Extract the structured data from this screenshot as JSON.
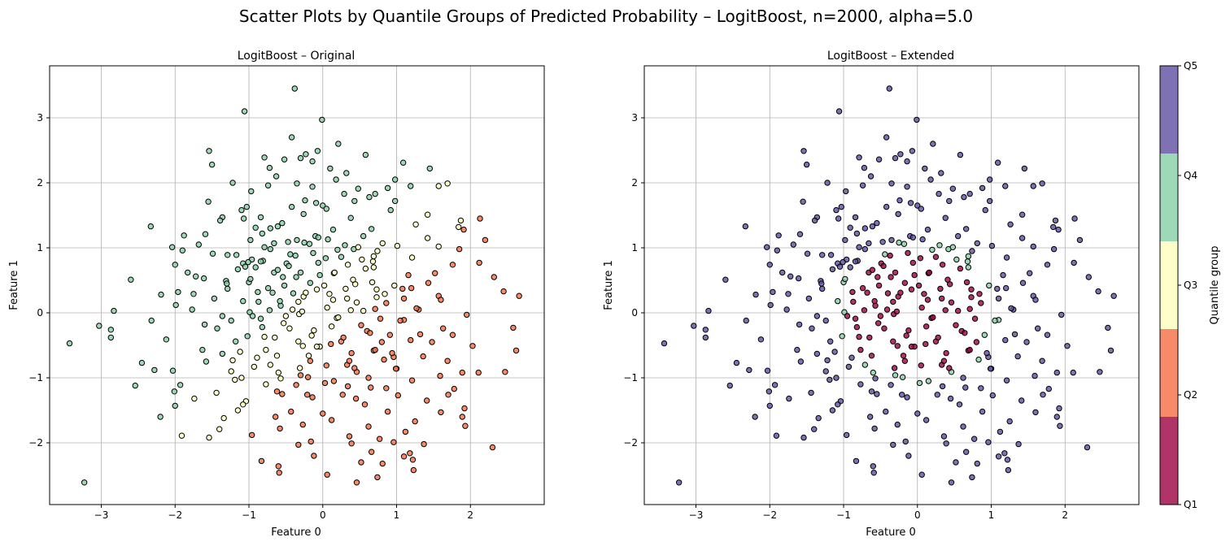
{
  "figure": {
    "suptitle": "Scatter Plots by Quantile Groups of Predicted Probability – LogitBoost, n=2000, alpha=5.0"
  },
  "colorbar": {
    "label": "Quantile group",
    "ticks": [
      "Q1",
      "Q2",
      "Q3",
      "Q4",
      "Q5"
    ],
    "colors": [
      "#9e0142",
      "#f46d43",
      "#fefebd",
      "#86cfa5",
      "#5e4fa2"
    ],
    "alpha": 0.8
  },
  "chart_data": [
    {
      "type": "scatter",
      "title": "LogitBoost – Original",
      "xlabel": "Feature 0",
      "ylabel": "Feature 1",
      "xlim": [
        -3.7,
        3.0
      ],
      "ylim": [
        -2.95,
        3.8
      ],
      "xticks": [
        -3,
        -2,
        -1,
        0,
        1,
        2
      ],
      "yticks": [
        -2,
        -1,
        0,
        1,
        2,
        3
      ],
      "grid": true,
      "coloring": "diagonal",
      "marker_edge": "#000000"
    },
    {
      "type": "scatter",
      "title": "LogitBoost – Extended",
      "xlabel": "Feature 0",
      "ylabel": "Feature 1",
      "xlim": [
        -3.7,
        3.0
      ],
      "ylim": [
        -2.95,
        3.8
      ],
      "xticks": [
        -3,
        -2,
        -1,
        0,
        1,
        2
      ],
      "yticks": [
        -2,
        -1,
        0,
        1,
        2,
        3
      ],
      "grid": true,
      "coloring": "radial",
      "marker_edge": "#000000"
    }
  ],
  "points": [
    [
      -0.38,
      3.45
    ],
    [
      -1.06,
      3.1
    ],
    [
      -0.01,
      2.97
    ],
    [
      -1.54,
      2.49
    ],
    [
      -0.07,
      2.49
    ],
    [
      -0.23,
      2.44
    ],
    [
      -0.79,
      2.39
    ],
    [
      0.58,
      2.43
    ],
    [
      -0.3,
      2.38
    ],
    [
      -0.14,
      2.33
    ],
    [
      1.09,
      2.31
    ],
    [
      -0.52,
      2.36
    ],
    [
      -1.5,
      2.28
    ],
    [
      0.32,
      2.15
    ],
    [
      0.1,
      2.22
    ],
    [
      -0.72,
      2.23
    ],
    [
      1.45,
      2.22
    ],
    [
      -0.63,
      2.1
    ],
    [
      1.69,
      1.99
    ],
    [
      1.57,
      1.95
    ],
    [
      1.19,
      1.95
    ],
    [
      -0.14,
      1.94
    ],
    [
      -0.35,
      1.99
    ],
    [
      0.48,
      1.91
    ],
    [
      -0.74,
      1.96
    ],
    [
      0.88,
      1.92
    ],
    [
      0.29,
      1.83
    ],
    [
      0.71,
      1.83
    ],
    [
      0.63,
      1.78
    ],
    [
      0.43,
      1.72
    ],
    [
      0.98,
      1.72
    ],
    [
      -1.55,
      1.71
    ],
    [
      -0.24,
      1.73
    ],
    [
      -0.09,
      1.69
    ],
    [
      0.0,
      1.65
    ],
    [
      0.05,
      1.6
    ],
    [
      -1.03,
      1.63
    ],
    [
      -0.42,
      1.63
    ],
    [
      -1.1,
      1.58
    ],
    [
      -0.26,
      1.52
    ],
    [
      -1.36,
      1.47
    ],
    [
      -0.84,
      1.47
    ],
    [
      -1.07,
      1.45
    ],
    [
      -1.39,
      1.42
    ],
    [
      0.38,
      1.46
    ],
    [
      1.42,
      1.51
    ],
    [
      2.13,
      1.45
    ],
    [
      1.87,
      1.42
    ],
    [
      -0.55,
      1.38
    ],
    [
      -0.61,
      1.33
    ],
    [
      -2.33,
      1.33
    ],
    [
      1.26,
      1.36
    ],
    [
      -0.71,
      1.3
    ],
    [
      -0.91,
      1.31
    ],
    [
      1.84,
      1.32
    ],
    [
      0.66,
      1.29
    ],
    [
      -1.59,
      1.21
    ],
    [
      -1.88,
      1.19
    ],
    [
      -0.1,
      1.18
    ],
    [
      1.91,
      1.28
    ],
    [
      0.07,
      1.13
    ],
    [
      -0.35,
      1.12
    ],
    [
      1.42,
      1.15
    ],
    [
      -0.47,
      1.09
    ],
    [
      -0.66,
      1.07
    ],
    [
      -0.18,
      1.06
    ],
    [
      0.3,
      1.04
    ],
    [
      0.81,
      1.07
    ],
    [
      1.01,
      1.03
    ],
    [
      -2.04,
      1.01
    ],
    [
      -1.9,
      0.96
    ],
    [
      1.85,
      0.98
    ],
    [
      -1.49,
      0.91
    ],
    [
      -0.71,
      0.98
    ],
    [
      0.42,
      0.98
    ],
    [
      -1.29,
      0.89
    ],
    [
      -1.17,
      0.89
    ],
    [
      -0.37,
      0.88
    ],
    [
      0.69,
      0.87
    ],
    [
      -0.96,
      0.82
    ],
    [
      0.04,
      0.84
    ],
    [
      -1.01,
      0.78
    ],
    [
      -0.81,
      0.8
    ],
    [
      0.53,
      0.82
    ],
    [
      -2.0,
      0.74
    ],
    [
      -1.08,
      0.76
    ],
    [
      2.12,
      0.77
    ],
    [
      -0.49,
      0.76
    ],
    [
      0.34,
      0.74
    ],
    [
      -0.91,
      0.7
    ],
    [
      -1.05,
      0.71
    ],
    [
      0.69,
      0.7
    ],
    [
      1.52,
      0.61
    ],
    [
      -0.66,
      0.62
    ],
    [
      -0.3,
      0.62
    ],
    [
      0.15,
      0.61
    ],
    [
      -1.72,
      0.56
    ],
    [
      -1.61,
      0.53
    ],
    [
      -0.54,
      0.55
    ],
    [
      -1.31,
      0.49
    ],
    [
      -1.0,
      0.47
    ],
    [
      1.43,
      0.46
    ],
    [
      -0.17,
      0.46
    ],
    [
      0.44,
      0.44
    ],
    [
      -0.74,
      0.38
    ],
    [
      -1.29,
      0.37
    ],
    [
      1.08,
      0.37
    ],
    [
      1.2,
      0.38
    ],
    [
      -0.08,
      0.36
    ],
    [
      0.73,
      0.36
    ],
    [
      -0.4,
      0.3
    ],
    [
      2.45,
      0.33
    ],
    [
      -1.75,
      0.29
    ],
    [
      0.84,
      0.29
    ],
    [
      -2.19,
      0.28
    ],
    [
      -0.26,
      0.25
    ],
    [
      1.57,
      0.26
    ],
    [
      2.66,
      0.26
    ],
    [
      -1.47,
      0.22
    ],
    [
      0.14,
      0.2
    ],
    [
      1.6,
      0.2
    ],
    [
      -0.87,
      0.17
    ],
    [
      -1.99,
      0.12
    ],
    [
      -0.57,
      0.11
    ],
    [
      -1.77,
      0.05
    ],
    [
      0.71,
      0.06
    ],
    [
      -0.99,
      0.01
    ],
    [
      -2.83,
      0.03
    ],
    [
      0.38,
      0.04
    ],
    [
      1.3,
      0.05
    ],
    [
      -0.32,
      -0.02
    ],
    [
      1.95,
      -0.03
    ],
    [
      -1.36,
      -0.05
    ],
    [
      -2.32,
      -0.12
    ],
    [
      -0.84,
      -0.09
    ],
    [
      0.19,
      -0.08
    ],
    [
      1.1,
      -0.11
    ],
    [
      -1.6,
      -0.18
    ],
    [
      -0.53,
      -0.16
    ],
    [
      -3.03,
      -0.2
    ],
    [
      -2.87,
      -0.26
    ],
    [
      -1.43,
      -0.24
    ],
    [
      1.63,
      -0.24
    ],
    [
      2.58,
      -0.23
    ],
    [
      -0.12,
      -0.27
    ],
    [
      0.6,
      -0.28
    ],
    [
      1.32,
      -0.33
    ],
    [
      -2.87,
      -0.38
    ],
    [
      -0.79,
      -0.37
    ],
    [
      1.76,
      -0.34
    ],
    [
      -3.43,
      -0.47
    ],
    [
      -1.18,
      -0.44
    ],
    [
      -0.33,
      -0.44
    ],
    [
      0.25,
      -0.44
    ],
    [
      1.48,
      -0.45
    ],
    [
      -1.63,
      -0.57
    ],
    [
      -0.04,
      -0.52
    ],
    [
      0.69,
      -0.58
    ],
    [
      2.62,
      -0.58
    ],
    [
      -1.36,
      -0.63
    ],
    [
      -0.62,
      -0.66
    ],
    [
      0.96,
      -0.68
    ],
    [
      1.36,
      -0.67
    ],
    [
      -1.22,
      -0.73
    ],
    [
      -0.17,
      -0.74
    ],
    [
      1.69,
      -0.74
    ],
    [
      -1.58,
      -0.75
    ],
    [
      0.33,
      -0.8
    ],
    [
      -0.93,
      -0.83
    ],
    [
      1.0,
      -0.86
    ],
    [
      -2.28,
      -0.88
    ],
    [
      -2.03,
      -0.89
    ],
    [
      -1.24,
      -0.9
    ],
    [
      -0.6,
      -0.92
    ],
    [
      0.46,
      -0.91
    ],
    [
      1.89,
      -0.92
    ],
    [
      2.11,
      -0.92
    ],
    [
      -0.3,
      -0.96
    ],
    [
      1.59,
      -0.97
    ],
    [
      -1.19,
      -1.03
    ],
    [
      1.21,
      -1.04
    ],
    [
      0.03,
      -1.08
    ],
    [
      -0.77,
      -1.1
    ],
    [
      -1.93,
      -1.11
    ],
    [
      0.65,
      -1.15
    ],
    [
      1.78,
      -1.17
    ],
    [
      -2.01,
      -1.21
    ],
    [
      -1.44,
      -1.23
    ],
    [
      -0.55,
      -1.25
    ],
    [
      0.27,
      -1.26
    ],
    [
      1.02,
      -1.27
    ],
    [
      -0.14,
      -1.3
    ],
    [
      -1.04,
      -1.36
    ],
    [
      1.41,
      -1.35
    ],
    [
      -1.08,
      -1.41
    ],
    [
      0.57,
      -1.41
    ],
    [
      -2.0,
      -1.43
    ],
    [
      1.92,
      -1.47
    ],
    [
      -1.15,
      -1.5
    ],
    [
      -0.43,
      -1.52
    ],
    [
      0.0,
      -1.55
    ],
    [
      0.88,
      -1.52
    ],
    [
      1.6,
      -1.53
    ],
    [
      -0.64,
      -1.6
    ],
    [
      0.12,
      -1.65
    ],
    [
      -2.2,
      -1.6
    ],
    [
      1.25,
      -1.67
    ],
    [
      1.89,
      -1.6
    ],
    [
      -0.27,
      -1.72
    ],
    [
      0.62,
      -1.75
    ],
    [
      -1.4,
      -1.79
    ],
    [
      -0.58,
      -1.78
    ],
    [
      1.12,
      -1.83
    ],
    [
      -1.54,
      -1.92
    ],
    [
      -1.91,
      -1.89
    ],
    [
      0.36,
      -1.9
    ],
    [
      0.77,
      -1.94
    ],
    [
      -0.16,
      -1.98
    ],
    [
      0.39,
      -2.01
    ],
    [
      0.96,
      -1.99
    ],
    [
      -0.33,
      -2.03
    ],
    [
      2.3,
      -2.07
    ],
    [
      0.66,
      -2.14
    ],
    [
      1.18,
      -2.16
    ],
    [
      1.1,
      -2.21
    ],
    [
      -0.83,
      -2.28
    ],
    [
      1.22,
      -2.26
    ],
    [
      -0.6,
      -2.36
    ],
    [
      1.23,
      -2.42
    ],
    [
      -0.59,
      -2.46
    ],
    [
      0.06,
      -2.49
    ],
    [
      0.74,
      -2.53
    ],
    [
      -3.23,
      -2.61
    ],
    [
      0.46,
      -2.61
    ],
    [
      -0.82,
      1.22
    ],
    [
      0.92,
      1.58
    ],
    [
      -1.96,
      0.32
    ],
    [
      1.7,
      -1.26
    ],
    [
      -2.45,
      -0.77
    ],
    [
      2.32,
      0.55
    ],
    [
      -1.34,
      -1.62
    ],
    [
      0.18,
      2.05
    ],
    [
      1.37,
      -2.02
    ],
    [
      -0.12,
      -2.2
    ],
    [
      -1.68,
      1.05
    ],
    [
      2.03,
      -0.51
    ],
    [
      -2.12,
      -0.41
    ],
    [
      0.81,
      -2.32
    ],
    [
      1.57,
      1.02
    ],
    [
      -1.22,
      2.0
    ],
    [
      -2.6,
      0.51
    ],
    [
      2.2,
      1.12
    ],
    [
      -0.97,
      1.87
    ],
    [
      0.52,
      -2.3
    ],
    [
      1.76,
      0.74
    ],
    [
      -1.74,
      -1.32
    ],
    [
      -0.42,
      2.7
    ],
    [
      0.21,
      2.6
    ],
    [
      -1.83,
      0.62
    ],
    [
      1.93,
      -1.74
    ],
    [
      -0.96,
      -1.88
    ],
    [
      0.98,
      2.05
    ],
    [
      -2.54,
      -1.12
    ],
    [
      2.47,
      -0.91
    ],
    [
      -0.28,
      0.02
    ],
    [
      0.06,
      0.08
    ],
    [
      0.12,
      -0.21
    ],
    [
      -0.23,
      0.31
    ],
    [
      0.33,
      0.22
    ],
    [
      -0.45,
      -0.24
    ],
    [
      0.28,
      -0.38
    ],
    [
      0.02,
      0.42
    ],
    [
      -0.58,
      0.18
    ],
    [
      0.55,
      0.03
    ],
    [
      -0.08,
      -0.52
    ],
    [
      0.41,
      0.51
    ],
    [
      -0.65,
      -0.38
    ],
    [
      0.64,
      -0.31
    ],
    [
      -0.36,
      0.55
    ],
    [
      0.16,
      0.62
    ],
    [
      -0.52,
      0.42
    ],
    [
      0.73,
      0.24
    ],
    [
      -0.19,
      -0.66
    ],
    [
      0.39,
      -0.62
    ],
    [
      -0.72,
      0.04
    ],
    [
      0.78,
      -0.09
    ],
    [
      -0.06,
      0.77
    ],
    [
      -0.82,
      -0.22
    ],
    [
      0.86,
      0.15
    ],
    [
      0.05,
      -0.81
    ],
    [
      -0.61,
      0.66
    ],
    [
      0.58,
      0.68
    ],
    [
      -0.77,
      -0.57
    ],
    [
      0.71,
      -0.57
    ],
    [
      -0.31,
      -0.85
    ],
    [
      0.25,
      0.86
    ],
    [
      -0.88,
      0.32
    ],
    [
      0.91,
      -0.34
    ],
    [
      -0.13,
      0.92
    ],
    [
      0.43,
      -0.85
    ],
    [
      -0.95,
      -0.05
    ],
    [
      0.97,
      0.42
    ],
    [
      -0.44,
      0.9
    ],
    [
      -0.2,
      -0.99
    ],
    [
      0.68,
      0.79
    ],
    [
      -0.71,
      -0.8
    ],
    [
      0.83,
      -0.72
    ],
    [
      -0.98,
      0.52
    ],
    [
      0.15,
      -1.05
    ],
    [
      -0.57,
      -1.01
    ],
    [
      1.05,
      -0.12
    ],
    [
      -1.02,
      -0.36
    ],
    [
      0.48,
      1.01
    ],
    [
      -0.25,
      1.08
    ],
    [
      0.94,
      -0.62
    ],
    [
      -0.84,
      0.79
    ],
    [
      0.62,
      -1.0
    ],
    [
      -0.33,
      0.17
    ],
    [
      0.21,
      -0.07
    ],
    [
      0.09,
      0.29
    ],
    [
      -0.15,
      -0.35
    ],
    [
      0.46,
      0.16
    ],
    [
      -0.41,
      0.05
    ],
    [
      0.31,
      0.37
    ],
    [
      -0.27,
      -0.51
    ],
    [
      0.52,
      -0.19
    ],
    [
      -0.04,
      0.58
    ],
    [
      0.11,
      -0.48
    ],
    [
      -0.5,
      -0.05
    ],
    [
      0.67,
      0.47
    ],
    [
      -0.68,
      0.31
    ],
    [
      0.36,
      -0.74
    ],
    [
      -0.46,
      0.72
    ],
    [
      0.8,
      -0.45
    ],
    [
      -0.89,
      -0.69
    ],
    [
      0.2,
      0.97
    ],
    [
      -1.08,
      0.18
    ],
    [
      1.1,
      0.22
    ],
    [
      -0.36,
      -1.11
    ],
    [
      0.74,
      0.95
    ],
    [
      -0.79,
      1.01
    ],
    [
      0.99,
      -0.86
    ],
    [
      -1.12,
      -0.6
    ],
    [
      0.34,
      -1.13
    ],
    [
      -0.06,
      1.16
    ],
    [
      1.16,
      0.58
    ],
    [
      -1.15,
      0.67
    ],
    [
      0.55,
      1.18
    ],
    [
      -0.62,
      -1.21
    ],
    [
      1.19,
      -0.42
    ],
    [
      -0.21,
      -1.26
    ],
    [
      0.14,
      1.28
    ],
    [
      -1.24,
      -0.12
    ],
    [
      0.86,
      -1.16
    ],
    [
      -0.98,
      1.12
    ],
    [
      1.27,
      0.07
    ],
    [
      -1.1,
      -1.0
    ],
    [
      0.45,
      -1.32
    ],
    [
      1.21,
      0.85
    ],
    [
      -1.3,
      0.45
    ]
  ]
}
